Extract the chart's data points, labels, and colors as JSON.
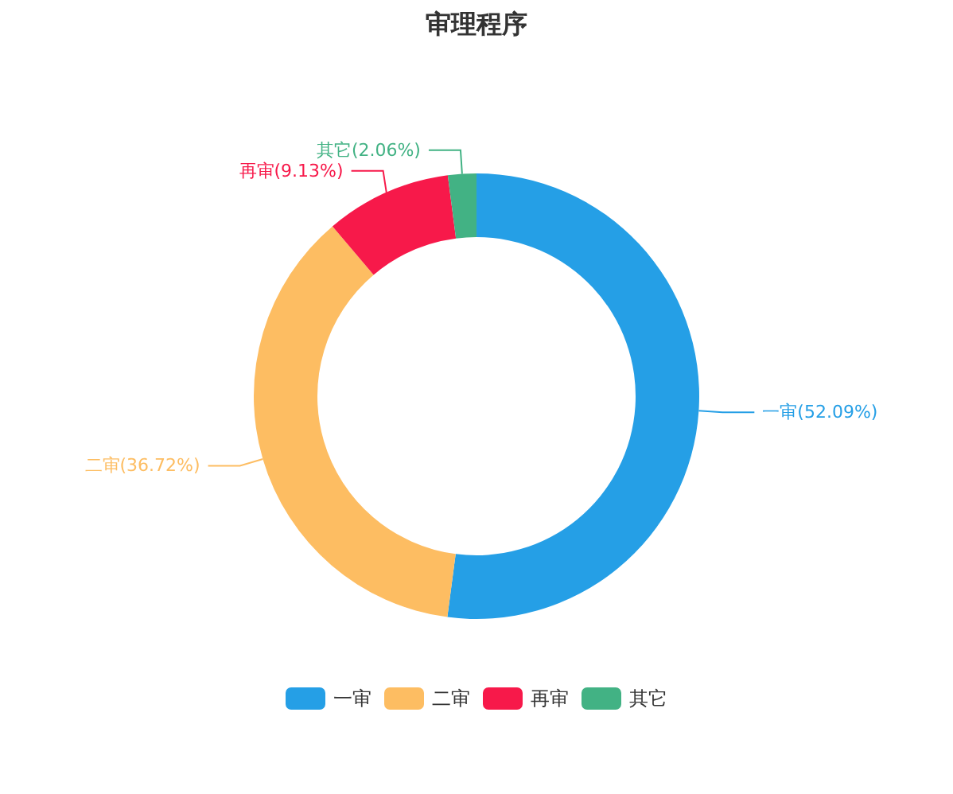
{
  "chart_data": {
    "type": "donut",
    "title": "审理程序",
    "categories": [
      "一审",
      "二审",
      "再审",
      "其它"
    ],
    "values": [
      52.09,
      36.72,
      9.13,
      2.06
    ],
    "colors": [
      "#259fe6",
      "#fdbd62",
      "#f7194a",
      "#42b284"
    ],
    "value_labels": [
      "(52.09%)",
      "(36.72%)",
      "(9.13%)",
      "(2.06%)"
    ],
    "legend": "bottom"
  }
}
